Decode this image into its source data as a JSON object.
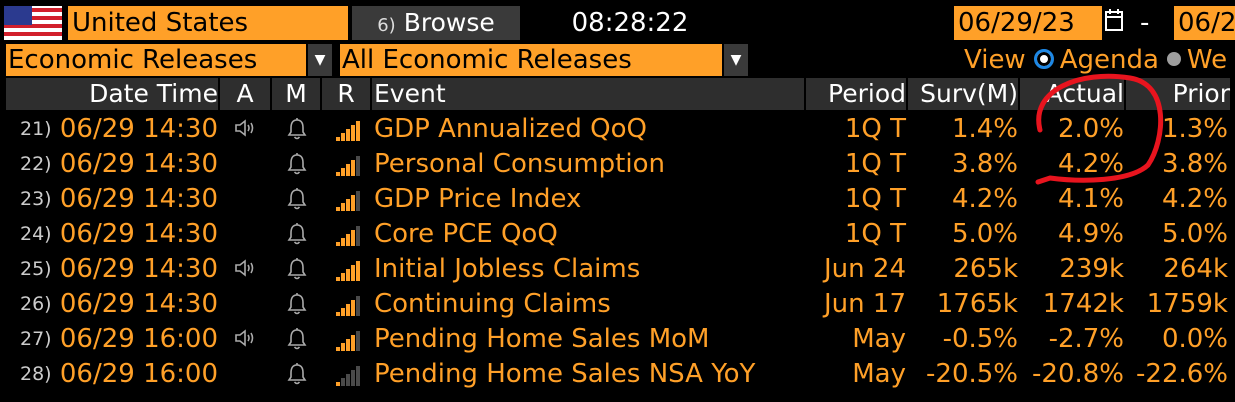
{
  "top_bar": {
    "country": "United States",
    "browse_num": "6)",
    "browse_label": "Browse",
    "clock": "08:28:22",
    "start_date": "06/29/23",
    "dash": "-",
    "end_date": "06/2"
  },
  "filters": {
    "category": "Economic Releases",
    "subcategory": "All Economic Releases",
    "view_label": "View",
    "view_agenda": "Agenda",
    "view_week": "We"
  },
  "columns": [
    "Date Time",
    "A",
    "M",
    "R",
    "Event",
    "Period",
    "Surv(M)",
    "Actual",
    "Prior"
  ],
  "rows": [
    {
      "idx": "21)",
      "datetime": "06/29 14:30",
      "alert": true,
      "event": "GDP Annualized QoQ",
      "period": "1Q T",
      "surv": "1.4%",
      "actual": "2.0%",
      "prior": "1.3%",
      "relevance": 5
    },
    {
      "idx": "22)",
      "datetime": "06/29 14:30",
      "alert": false,
      "event": "Personal Consumption",
      "period": "1Q T",
      "surv": "3.8%",
      "actual": "4.2%",
      "prior": "3.8%",
      "relevance": 4
    },
    {
      "idx": "23)",
      "datetime": "06/29 14:30",
      "alert": false,
      "event": "GDP Price Index",
      "period": "1Q T",
      "surv": "4.2%",
      "actual": "4.1%",
      "prior": "4.2%",
      "relevance": 4
    },
    {
      "idx": "24)",
      "datetime": "06/29 14:30",
      "alert": false,
      "event": "Core PCE QoQ",
      "period": "1Q T",
      "surv": "5.0%",
      "actual": "4.9%",
      "prior": "5.0%",
      "relevance": 4
    },
    {
      "idx": "25)",
      "datetime": "06/29 14:30",
      "alert": true,
      "event": "Initial Jobless Claims",
      "period": "Jun 24",
      "surv": "265k",
      "actual": "239k",
      "prior": "264k",
      "relevance": 5
    },
    {
      "idx": "26)",
      "datetime": "06/29 14:30",
      "alert": false,
      "event": "Continuing Claims",
      "period": "Jun 17",
      "surv": "1765k",
      "actual": "1742k",
      "prior": "1759k",
      "relevance": 4
    },
    {
      "idx": "27)",
      "datetime": "06/29 16:00",
      "alert": true,
      "event": "Pending Home Sales MoM",
      "period": "May",
      "surv": "-0.5%",
      "actual": "-2.7%",
      "prior": "0.0%",
      "relevance": 4
    },
    {
      "idx": "28)",
      "datetime": "06/29 16:00",
      "alert": false,
      "event": "Pending Home Sales NSA YoY",
      "period": "May",
      "surv": "-20.5%",
      "actual": "-20.8%",
      "prior": "-22.6%",
      "relevance": 1
    }
  ],
  "colors": {
    "accent": "#ffa028",
    "header_bg": "#2e2e2e",
    "annotation": "#e8141e",
    "relevance_on": "#ffa028",
    "relevance_off": "#4a4a4a"
  },
  "icons": {
    "alert": "speaker-icon",
    "monitor": "bell-icon",
    "relevance": "signal-bars-icon"
  }
}
